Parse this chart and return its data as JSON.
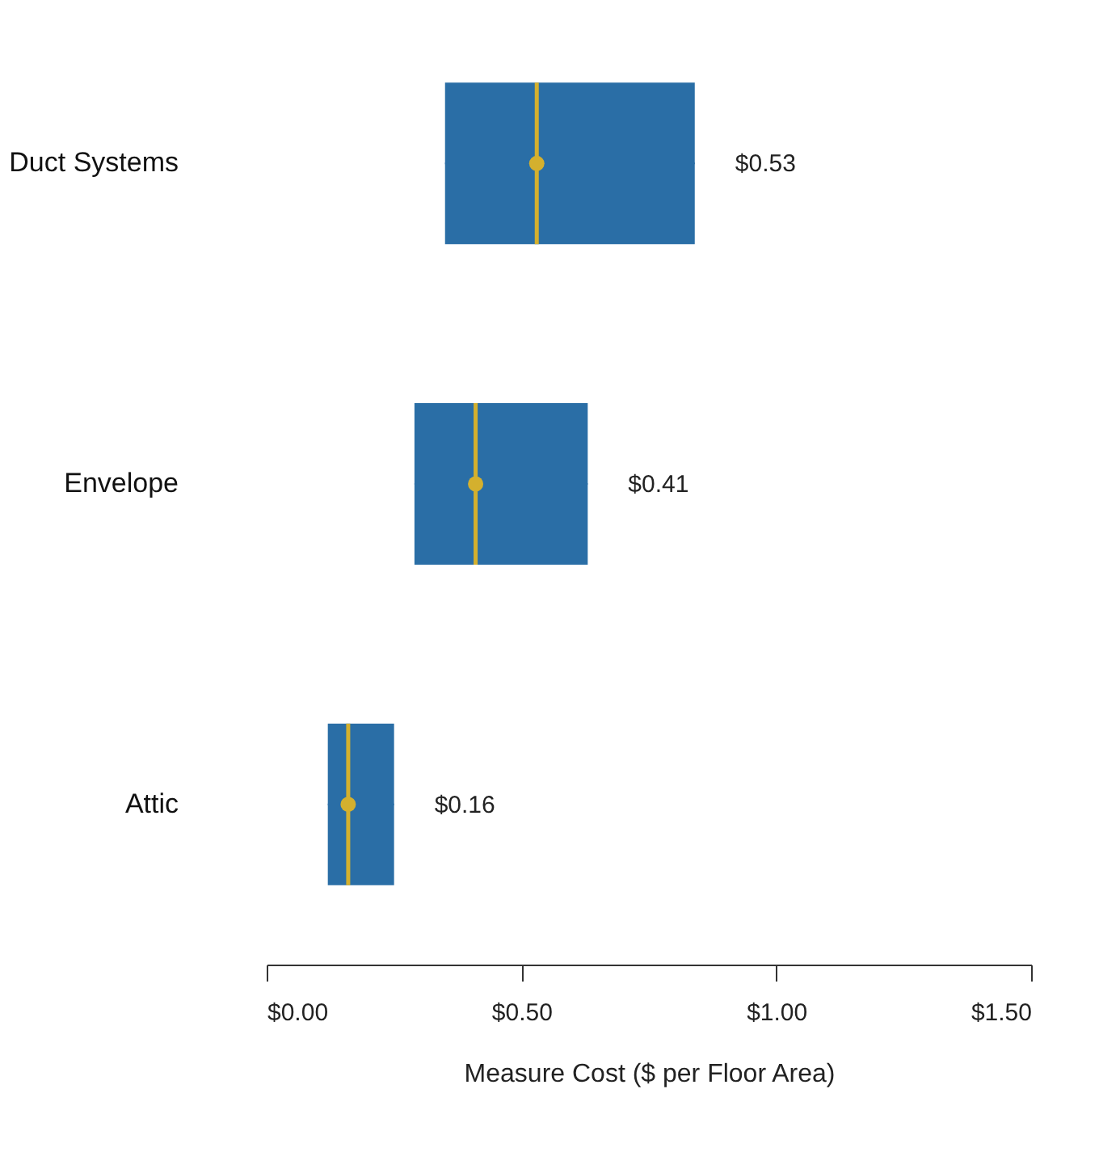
{
  "chart_data": {
    "type": "box",
    "orientation": "horizontal",
    "categories": [
      "Duct Systems",
      "Envelope",
      "Attic"
    ],
    "boxes": [
      {
        "low": 0.35,
        "q1": 0.35,
        "median": 0.53,
        "q3": 0.84,
        "high": 0.84,
        "mean": 0.53
      },
      {
        "low": 0.29,
        "q1": 0.29,
        "median": 0.41,
        "q3": 0.63,
        "high": 0.63,
        "mean": 0.41
      },
      {
        "low": 0.12,
        "q1": 0.12,
        "median": 0.16,
        "q3": 0.25,
        "high": 0.25,
        "mean": 0.16
      }
    ],
    "value_labels": [
      "$0.53",
      "$0.41",
      "$0.16"
    ],
    "color": "#2a6ea6",
    "xlabel": "Measure Cost ($  per Floor Area)",
    "xlim": [
      0,
      1.5
    ],
    "xticks": [
      {
        "value": 0,
        "label": "$0.00"
      },
      {
        "value": 0.5,
        "label": "$0.50"
      },
      {
        "value": 1,
        "label": "$1.00"
      },
      {
        "value": 1.5,
        "label": "$1.50"
      }
    ],
    "grid": false
  }
}
